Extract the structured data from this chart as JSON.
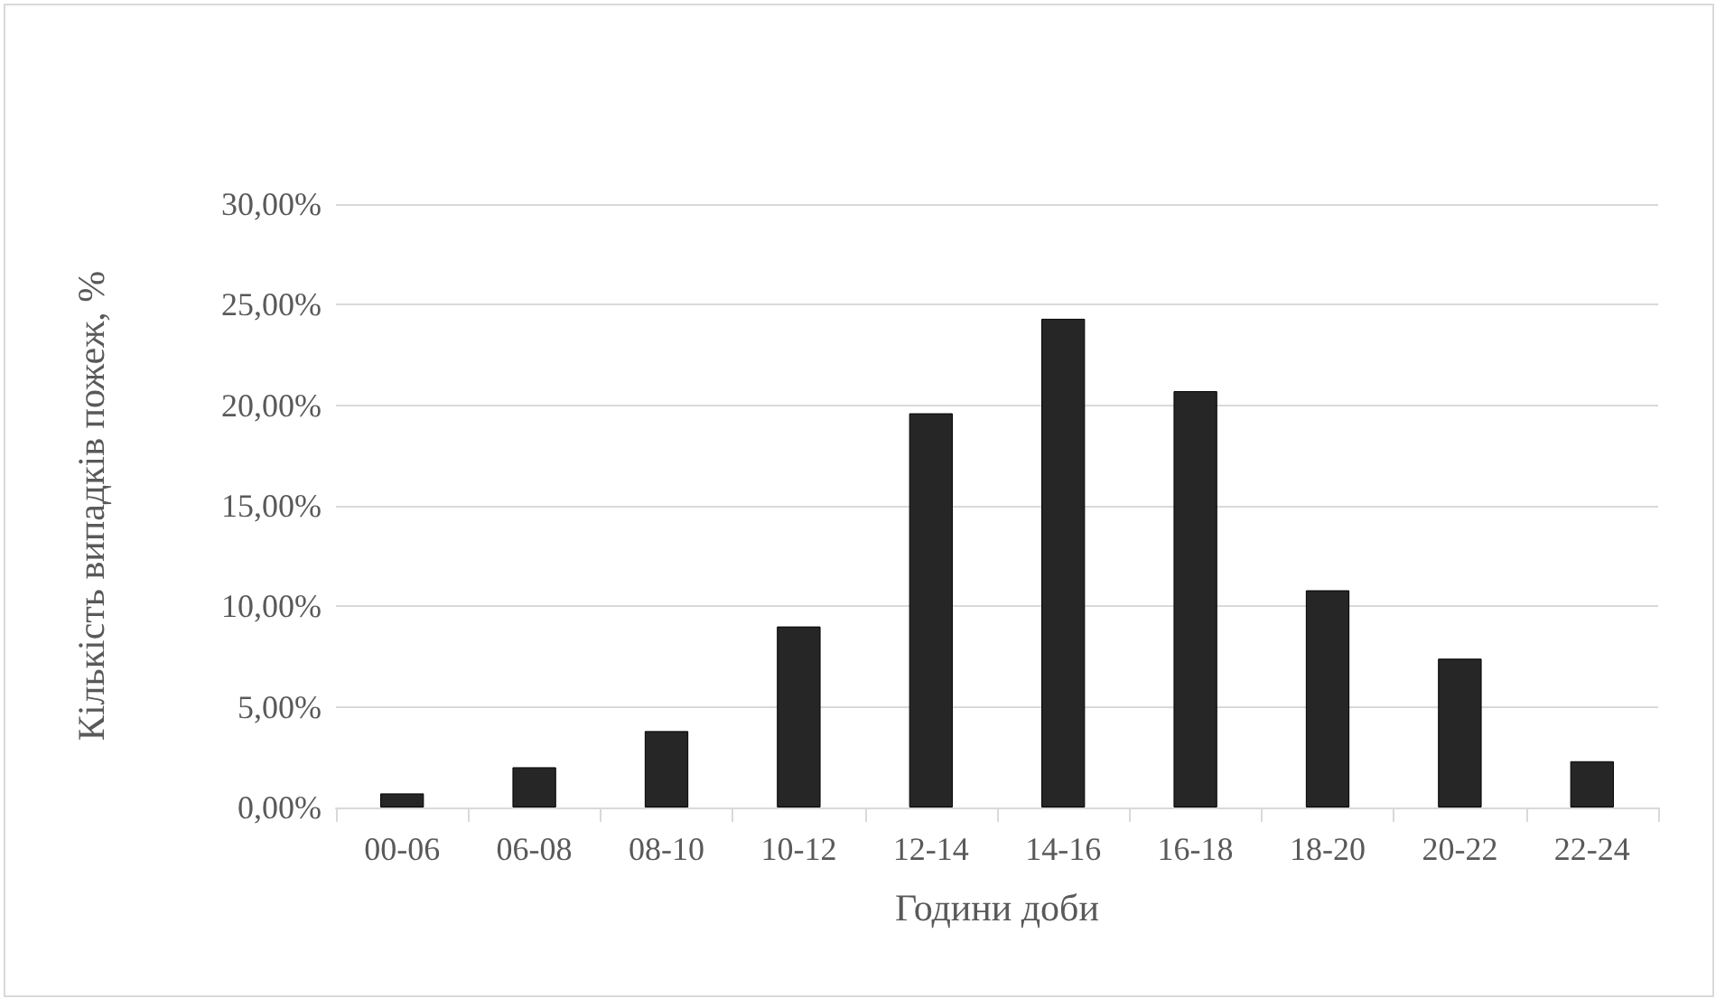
{
  "chart_data": {
    "type": "bar",
    "xlabel": "Години доби",
    "ylabel": "Кількість випадків пожеж, %",
    "categories": [
      "00-06",
      "06-08",
      "08-10",
      "10-12",
      "12-14",
      "14-16",
      "16-18",
      "18-20",
      "20-22",
      "22-24"
    ],
    "values": [
      0.7,
      2.0,
      3.8,
      9.0,
      19.6,
      24.3,
      20.7,
      10.8,
      7.4,
      2.3
    ],
    "color": "#262626",
    "ylim": [
      0,
      30
    ],
    "yticks": [
      {
        "value": 0,
        "label": "0,00%"
      },
      {
        "value": 5,
        "label": "5,00%"
      },
      {
        "value": 10,
        "label": "10,00%"
      },
      {
        "value": 15,
        "label": "15,00%"
      },
      {
        "value": 20,
        "label": "20,00%"
      },
      {
        "value": 25,
        "label": "25,00%"
      },
      {
        "value": 30,
        "label": "30,00%"
      }
    ],
    "grid": "y"
  }
}
